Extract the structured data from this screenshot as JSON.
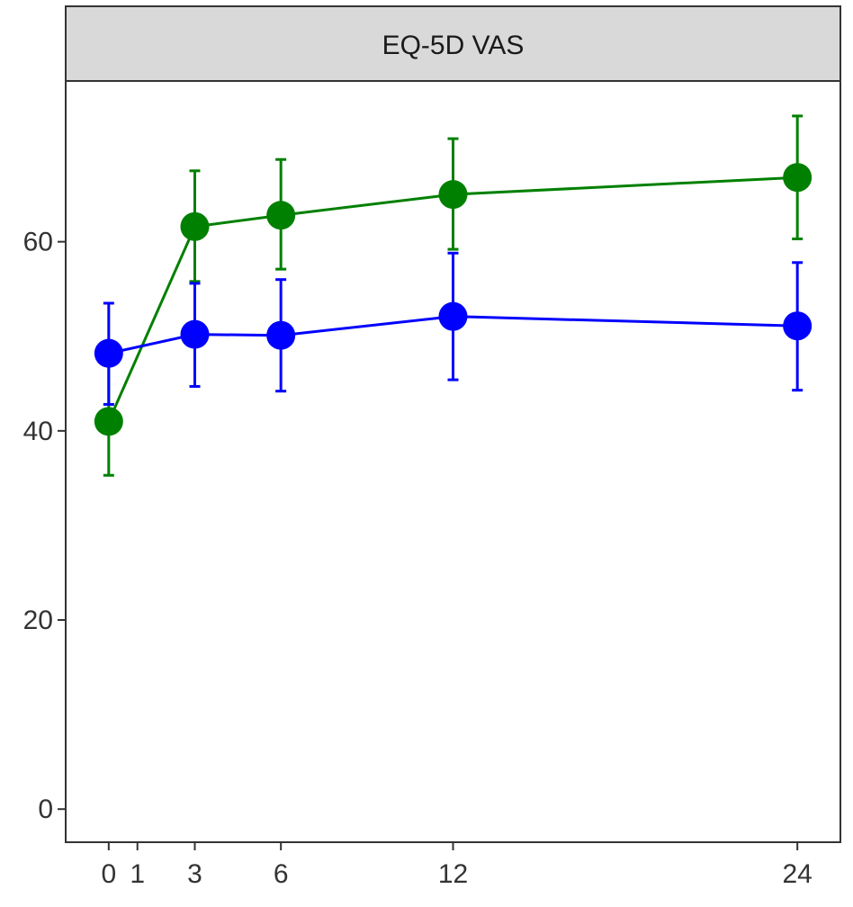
{
  "chart_data": {
    "type": "line",
    "title": "EQ-5D VAS",
    "x_ticks": [
      0,
      1,
      3,
      6,
      12,
      24
    ],
    "y_ticks": [
      0,
      20,
      40,
      60
    ],
    "xlim": [
      -1.5,
      25.5
    ],
    "ylim": [
      -3.5,
      77
    ],
    "grid": false,
    "legend": "none",
    "series": [
      {
        "color": "#008000",
        "points": [
          {
            "x": 0,
            "y": 41,
            "lower": 35.3,
            "upper": 47
          },
          {
            "x": 3,
            "y": 61.6,
            "lower": 55.8,
            "upper": 67.5
          },
          {
            "x": 6,
            "y": 62.8,
            "lower": 57.1,
            "upper": 68.7
          },
          {
            "x": 12,
            "y": 65,
            "lower": 59.2,
            "upper": 70.9
          },
          {
            "x": 24,
            "y": 66.8,
            "lower": 60.3,
            "upper": 73.3
          }
        ]
      },
      {
        "color": "#0000ff",
        "points": [
          {
            "x": 0,
            "y": 48.2,
            "lower": 42.8,
            "upper": 53.5
          },
          {
            "x": 3,
            "y": 50.2,
            "lower": 44.7,
            "upper": 55.6
          },
          {
            "x": 6,
            "y": 50.1,
            "lower": 44.2,
            "upper": 56
          },
          {
            "x": 12,
            "y": 52.1,
            "lower": 45.4,
            "upper": 58.8
          },
          {
            "x": 24,
            "y": 51.1,
            "lower": 44.3,
            "upper": 57.8
          }
        ]
      }
    ]
  }
}
